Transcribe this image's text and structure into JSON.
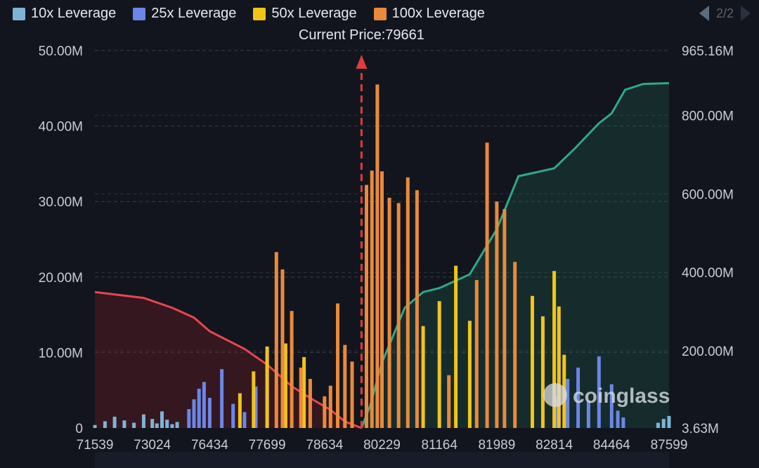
{
  "legend": [
    {
      "label": "10x Leverage",
      "color": "#7fb3d5"
    },
    {
      "label": "25x Leverage",
      "color": "#6b86e6"
    },
    {
      "label": "50x Leverage",
      "color": "#f0c419"
    },
    {
      "label": "100x Leverage",
      "color": "#ea8a3a"
    }
  ],
  "pager": {
    "label": "2/2"
  },
  "watermark": "coinglass",
  "chart_data": {
    "type": "bar",
    "title": "",
    "current_price_label": "Current Price:79661",
    "current_price": 79661,
    "x_tick_labels": [
      "71539",
      "73024",
      "76434",
      "77699",
      "78634",
      "80229",
      "81164",
      "81989",
      "82814",
      "84464",
      "87599"
    ],
    "left_axis": {
      "ticks": [
        "0",
        "10.00M",
        "20.00M",
        "30.00M",
        "40.00M",
        "50.00M"
      ],
      "ylim": [
        0,
        50000000
      ]
    },
    "right_axis": {
      "ticks": [
        "3.63M",
        "200.00M",
        "400.00M",
        "600.00M",
        "800.00M",
        "965.16M"
      ],
      "ylim": [
        3630000,
        965160000
      ]
    },
    "grid": true,
    "legend_position": "top-left",
    "bar_series": [
      {
        "name": "10x Leverage",
        "color": "#7fb3d5",
        "x": [
          71539,
          71800,
          72050,
          72300,
          72550,
          72800,
          73024,
          73300,
          73600,
          73900,
          74200,
          74500,
          87000,
          87300,
          87599
        ],
        "values": [
          0.4,
          0.9,
          1.5,
          1.0,
          0.7,
          1.8,
          1.2,
          0.6,
          2.2,
          1.1,
          0.5,
          0.8,
          0.7,
          1.2,
          1.6
        ]
      },
      {
        "name": "25x Leverage",
        "color": "#6b86e6",
        "x": [
          75200,
          75500,
          75800,
          76100,
          76434,
          76700,
          76950,
          77200,
          77450,
          77699,
          82900,
          83200,
          83500,
          83800,
          84100,
          84464,
          84800,
          85100
        ],
        "values": [
          2.5,
          3.8,
          5.2,
          6.1,
          4.0,
          7.8,
          3.2,
          2.1,
          5.5,
          9.8,
          4.2,
          6.5,
          8.0,
          3.6,
          9.5,
          5.8,
          2.3,
          1.4
        ]
      },
      {
        "name": "50x Leverage",
        "color": "#f0c419",
        "x": [
          77100,
          77400,
          77699,
          78000,
          78300,
          80900,
          81164,
          81400,
          81600,
          82500,
          82650,
          82814,
          82950,
          83100
        ],
        "values": [
          4.6,
          7.5,
          10.8,
          11.2,
          9.4,
          13.5,
          16.8,
          21.5,
          14.2,
          17.5,
          14.8,
          20.8,
          16.1,
          9.7
        ]
      },
      {
        "name": "100x Leverage",
        "color": "#ea8a3a",
        "x": [
          77850,
          77950,
          78100,
          78250,
          78400,
          78634,
          78800,
          79000,
          79200,
          79400,
          79800,
          79950,
          80100,
          80229,
          80350,
          80500,
          80650,
          80800,
          81300,
          81700,
          81850,
          81989,
          82100,
          82250
        ],
        "values": [
          23.3,
          21.0,
          15.5,
          8.0,
          6.5,
          4.2,
          5.6,
          16.5,
          11.0,
          8.8,
          32.2,
          34.1,
          45.5,
          34.0,
          30.5,
          29.8,
          33.2,
          31.5,
          7.0,
          19.6,
          37.8,
          30.0,
          29.0,
          22.0
        ]
      }
    ],
    "cumulative_short": {
      "name": "",
      "color": "#e8454f",
      "x": [
        71539,
        72800,
        74200,
        75500,
        76434,
        77200,
        77699,
        78100,
        78400,
        78800,
        79200,
        79661
      ],
      "values": [
        350,
        335,
        310,
        285,
        250,
        205,
        165,
        110,
        80,
        50,
        20,
        3.63
      ]
    },
    "cumulative_long": {
      "name": "",
      "color": "#2fa88a",
      "x": [
        79661,
        79900,
        80229,
        80600,
        80900,
        81164,
        81600,
        81989,
        82300,
        82814,
        83400,
        84100,
        84464,
        85200,
        86200,
        87599
      ],
      "values": [
        3.63,
        60,
        170,
        310,
        350,
        360,
        395,
        510,
        645,
        665,
        715,
        780,
        805,
        865,
        880,
        882
      ]
    }
  }
}
